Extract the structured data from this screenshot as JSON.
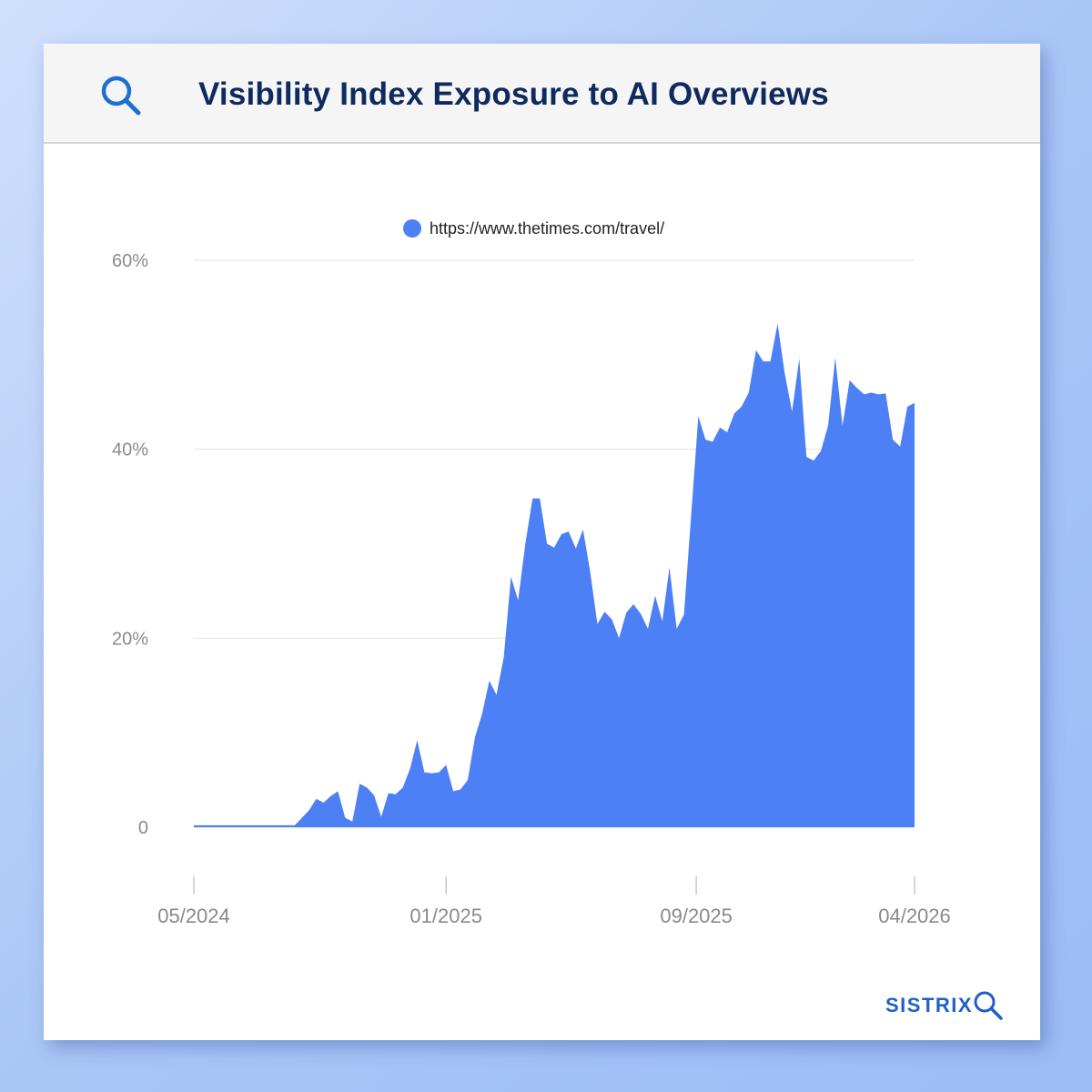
{
  "header": {
    "title": "Visibility Index Exposure to AI Overviews",
    "icon": "search-icon"
  },
  "brand": {
    "name": "SISTRIX",
    "icon": "search-icon",
    "color": "#1f5fc8"
  },
  "colors": {
    "series": "#4d80f5",
    "title": "#0f2a5f"
  },
  "chart_data": {
    "type": "area",
    "title": "Visibility Index Exposure to AI Overviews",
    "xlabel": "",
    "ylabel": "",
    "ylim": [
      0,
      60
    ],
    "y_ticks": [
      0,
      20,
      40,
      60
    ],
    "y_tick_labels": [
      "0",
      "20%",
      "40%",
      "60%"
    ],
    "x_tick_labels": [
      "05/2024",
      "01/2025",
      "09/2025",
      "04/2026"
    ],
    "x_tick_dates": [
      "2024-05-01",
      "2025-01-01",
      "2025-09-01",
      "2026-04-01"
    ],
    "grid": true,
    "legend_position": "top",
    "series": [
      {
        "name": "https://www.thetimes.com/travel/",
        "color": "#4d80f5",
        "x": [
          "2024-05-01",
          "2024-05-08",
          "2024-05-15",
          "2024-05-22",
          "2024-05-29",
          "2024-06-05",
          "2024-06-12",
          "2024-06-19",
          "2024-06-26",
          "2024-07-03",
          "2024-07-10",
          "2024-07-17",
          "2024-07-24",
          "2024-07-31",
          "2024-08-07",
          "2024-08-14",
          "2024-08-21",
          "2024-08-28",
          "2024-09-04",
          "2024-09-11",
          "2024-09-18",
          "2024-09-25",
          "2024-10-02",
          "2024-10-09",
          "2024-10-16",
          "2024-10-23",
          "2024-10-30",
          "2024-11-06",
          "2024-11-13",
          "2024-11-20",
          "2024-11-27",
          "2024-12-04",
          "2024-12-11",
          "2024-12-18",
          "2024-12-25",
          "2025-01-01",
          "2025-01-08",
          "2025-01-15",
          "2025-01-22",
          "2025-01-29",
          "2025-02-05",
          "2025-02-12",
          "2025-02-19",
          "2025-02-26",
          "2025-03-05",
          "2025-03-12",
          "2025-03-19",
          "2025-03-26",
          "2025-04-02",
          "2025-04-09",
          "2025-04-16",
          "2025-04-23",
          "2025-04-30",
          "2025-05-07",
          "2025-05-14",
          "2025-05-21",
          "2025-05-28",
          "2025-06-04",
          "2025-06-11",
          "2025-06-18",
          "2025-06-25",
          "2025-07-02",
          "2025-07-09",
          "2025-07-16",
          "2025-07-23",
          "2025-07-30",
          "2025-08-06",
          "2025-08-13",
          "2025-08-20",
          "2025-08-27",
          "2025-09-03",
          "2025-09-10",
          "2025-09-17",
          "2025-09-24",
          "2025-10-01",
          "2025-10-08",
          "2025-10-15",
          "2025-10-22",
          "2025-10-29",
          "2025-11-05",
          "2025-11-12",
          "2025-11-19",
          "2025-11-26",
          "2025-12-03",
          "2025-12-10",
          "2025-12-17",
          "2025-12-24",
          "2025-12-31",
          "2026-01-07",
          "2026-01-14",
          "2026-01-21",
          "2026-01-28",
          "2026-02-04",
          "2026-02-11",
          "2026-02-18",
          "2026-02-25",
          "2026-03-04",
          "2026-03-11",
          "2026-03-18",
          "2026-03-25",
          "2026-04-01"
        ],
        "values": [
          0.2,
          0.2,
          0.2,
          0.2,
          0.2,
          0.2,
          0.2,
          0.2,
          0.2,
          0.2,
          0.2,
          0.2,
          0.2,
          0.2,
          0.2,
          1.0,
          1.8,
          3.0,
          2.6,
          3.3,
          3.8,
          1.0,
          0.6,
          4.6,
          4.2,
          3.4,
          1.1,
          3.6,
          3.5,
          4.2,
          6.2,
          9.2,
          5.8,
          5.7,
          5.8,
          6.6,
          3.8,
          4.0,
          5.0,
          9.5,
          12.0,
          15.5,
          14.0,
          18.0,
          26.5,
          24.0,
          30.0,
          34.8,
          34.8,
          30.0,
          29.6,
          31.0,
          31.3,
          29.5,
          31.5,
          27.0,
          21.5,
          22.8,
          22.0,
          20.0,
          22.7,
          23.6,
          22.6,
          21.0,
          24.5,
          21.8,
          27.5,
          21.0,
          22.5,
          33.0,
          43.5,
          41.0,
          40.8,
          42.3,
          41.8,
          43.8,
          44.5,
          46.0,
          50.5,
          49.3,
          49.3,
          53.3,
          48.0,
          44.0,
          49.6,
          39.2,
          38.8,
          39.8,
          42.5,
          49.7,
          42.5,
          47.3,
          46.5,
          45.8,
          46.0,
          45.8,
          45.9,
          41.0,
          40.3,
          44.5,
          44.9
        ]
      }
    ]
  }
}
